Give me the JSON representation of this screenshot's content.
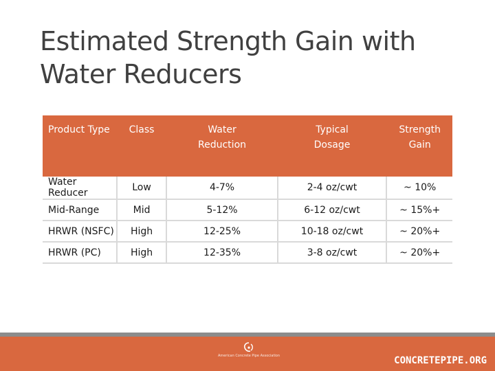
{
  "slide": {
    "title": "Estimated Strength Gain with Water Reducers"
  },
  "table": {
    "headers": [
      "Product Type",
      "Class",
      "Water Reduction",
      "Typical Dosage",
      "Strength Gain"
    ],
    "rows": [
      [
        "Water Reducer",
        "Low",
        "4-7%",
        "2-4 oz/cwt",
        "~ 10%"
      ],
      [
        "Mid-Range",
        "Mid",
        "5-12%",
        "6-12 oz/cwt",
        "~ 15%+"
      ],
      [
        "HRWR (NSFC)",
        "High",
        "12-25%",
        "10-18 oz/cwt",
        "~ 20%+"
      ],
      [
        "HRWR (PC)",
        "High",
        "12-35%",
        "3-8 oz/cwt",
        "~ 20%+"
      ]
    ]
  },
  "footer": {
    "logo_text": "American Concrete Pipe Association",
    "website": "CONCRETEPIPE.ORG"
  },
  "colors": {
    "accent": "#d9683f",
    "footer_rule": "#8c8c8c",
    "title": "#404040"
  }
}
